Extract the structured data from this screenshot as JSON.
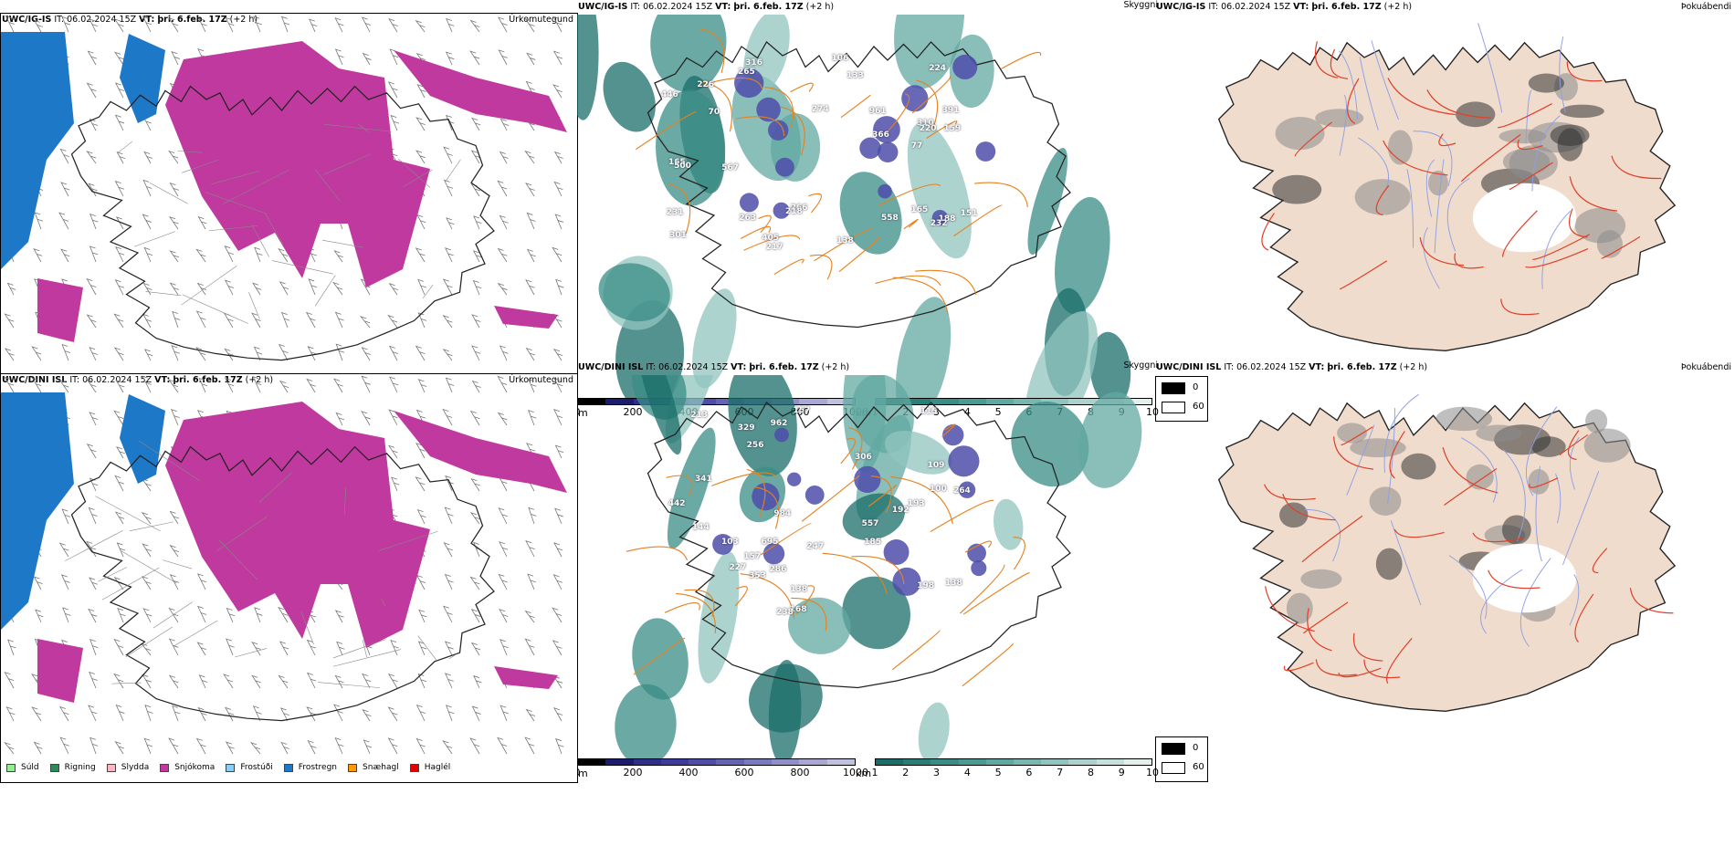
{
  "rows": [
    {
      "precip": {
        "model": "UWC/IG-IS",
        "it_label": "IT:",
        "it": "06.02.2024 15Z",
        "vt_label": "VT:",
        "vt": "þri. 6.feb. 17Z",
        "lead": "(+2 h)",
        "title": "Úrkomutegund"
      },
      "cloud": {
        "model": "UWC/IG-IS",
        "it_label": "IT:",
        "it": "06.02.2024 15Z",
        "vt_label": "VT:",
        "vt": "þri. 6.feb. 17Z",
        "lead": "(+2 h)",
        "title": "Skyggni",
        "labels": [
          "165",
          "391",
          "188",
          "274",
          "301",
          "316",
          "310",
          "263",
          "224",
          "70",
          "159",
          "446",
          "77",
          "217",
          "231",
          "226",
          "232",
          "265",
          "266",
          "220",
          "165",
          "500",
          "138",
          "366",
          "405",
          "218",
          "106",
          "133",
          "961",
          "151",
          "567",
          "558"
        ]
      },
      "fog": {
        "model": "UWC/IG-IS",
        "it_label": "IT:",
        "it": "06.02.2024 15Z",
        "vt_label": "VT:",
        "vt": "þri. 6.feb. 17Z",
        "lead": "(+2 h)",
        "title": "Þokuábendi"
      }
    },
    {
      "precip": {
        "model": "UWC/DINI ISL",
        "it_label": "IT:",
        "it": "06.02.2024 15Z",
        "vt_label": "VT:",
        "vt": "þri. 6.feb. 17Z",
        "lead": "(+2 h)",
        "title": "Úrkomutegund"
      },
      "cloud": {
        "model": "UWC/DINI ISL",
        "it_label": "IT:",
        "it": "06.02.2024 15Z",
        "vt_label": "VT:",
        "vt": "þri. 6.feb. 17Z",
        "lead": "(+2 h)",
        "title": "Skyggni",
        "labels": [
          "695",
          "329",
          "103",
          "984",
          "247",
          "109",
          "353",
          "286",
          "306",
          "138",
          "227",
          "198",
          "213",
          "168",
          "193",
          "185",
          "157",
          "100",
          "157",
          "341",
          "238",
          "192",
          "256",
          "557",
          "264",
          "144",
          "442",
          "962",
          "138",
          "115"
        ]
      },
      "fog": {
        "model": "UWC/DINI ISL",
        "it_label": "IT:",
        "it": "06.02.2024 15Z",
        "vt_label": "VT:",
        "vt": "þri. 6.feb. 17Z",
        "lead": "(+2 h)",
        "title": "Þokuábendi"
      }
    }
  ],
  "precip_legend": [
    {
      "label": "Súld",
      "color": "#90ee90"
    },
    {
      "label": "Rigning",
      "color": "#2e8b57"
    },
    {
      "label": "Slydda",
      "color": "#ffb6c1"
    },
    {
      "label": "Snjókoma",
      "color": "#c0399e"
    },
    {
      "label": "Frostúði",
      "color": "#87cefa"
    },
    {
      "label": "Frostregn",
      "color": "#1e78c8"
    },
    {
      "label": "Snæhagl",
      "color": "#ff9900"
    },
    {
      "label": "Haglél",
      "color": "#e00000"
    }
  ],
  "ceiling_scale": {
    "unit": "m",
    "ticks": [
      "0",
      "200",
      "400",
      "600",
      "800",
      "1000"
    ],
    "colors": [
      "#000000",
      "#1c1c6e",
      "#2e2e8c",
      "#3c3ca0",
      "#4e4eaa",
      "#6464b4",
      "#7a7abe",
      "#9090c8",
      "#a8a8d2",
      "#c0c0e0"
    ]
  },
  "visibility_scale": {
    "unit": "km",
    "ticks": [
      "1",
      "2",
      "3",
      "4",
      "5",
      "6",
      "7",
      "8",
      "9",
      "10"
    ],
    "colors": [
      "#1a6e6a",
      "#2a7e78",
      "#3a8c86",
      "#4c9a94",
      "#62a8a2",
      "#7ab6b0",
      "#92c4bf",
      "#acd2ce",
      "#c6e0dd",
      "#e2efed"
    ]
  },
  "fog_key": [
    {
      "value": "0",
      "color": "#000000"
    },
    {
      "value": "60",
      "color": "#ffffff"
    }
  ]
}
